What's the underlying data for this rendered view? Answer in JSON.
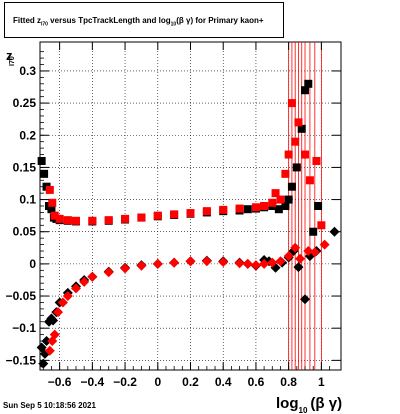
{
  "title": {
    "prefix": "Fitted  z",
    "prefix_sub": "I70",
    "middle": "  versus TpcTrackLength and log",
    "log_sub": "10",
    "suffix": "(β  γ) for Primary kaon+"
  },
  "footer": "Sun Sep  5 10:18:56 2021",
  "chart_data": {
    "type": "scatter",
    "xlabel": "log",
    "xlabel_sub": "10",
    "xlabel_suffix": "(β γ)",
    "ylabel": "z",
    "ylabel_sub": "I70",
    "xlim": [
      -0.72,
      1.12
    ],
    "ylim": [
      -0.165,
      0.345
    ],
    "xticks": [
      -0.6,
      -0.4,
      -0.2,
      0,
      0.2,
      0.4,
      0.6,
      0.8,
      1
    ],
    "xtick_labels": [
      "−0.6",
      "−0.4",
      "−0.2",
      "0",
      "0.2",
      "0.4",
      "0.6",
      "0.8",
      "1"
    ],
    "yticks": [
      -0.15,
      -0.1,
      -0.05,
      0,
      0.05,
      0.1,
      0.15,
      0.2,
      0.25,
      0.3
    ],
    "ytick_labels": [
      "−0.15",
      "−0.1",
      "−0.05",
      "0",
      "0.05",
      "0.1",
      "0.15",
      "0.2",
      "0.25",
      "0.3"
    ],
    "grid": true,
    "colors": {
      "series_black": "#000000",
      "series_red": "#ff0000"
    },
    "series": [
      {
        "color": "#000000",
        "marker": "square",
        "points": [
          {
            "x": -0.71,
            "y": 0.16
          },
          {
            "x": -0.695,
            "y": 0.14
          },
          {
            "x": -0.68,
            "y": 0.12
          },
          {
            "x": -0.665,
            "y": 0.09
          },
          {
            "x": -0.65,
            "y": 0.085
          },
          {
            "x": -0.635,
            "y": 0.072
          },
          {
            "x": -0.62,
            "y": 0.07
          },
          {
            "x": -0.6,
            "y": 0.068
          },
          {
            "x": -0.55,
            "y": 0.067
          },
          {
            "x": -0.5,
            "y": 0.066
          },
          {
            "x": -0.4,
            "y": 0.066
          },
          {
            "x": -0.3,
            "y": 0.067
          },
          {
            "x": -0.2,
            "y": 0.069
          },
          {
            "x": -0.1,
            "y": 0.072
          },
          {
            "x": 0.0,
            "y": 0.074
          },
          {
            "x": 0.1,
            "y": 0.076
          },
          {
            "x": 0.2,
            "y": 0.078
          },
          {
            "x": 0.3,
            "y": 0.08
          },
          {
            "x": 0.4,
            "y": 0.082
          },
          {
            "x": 0.5,
            "y": 0.083
          },
          {
            "x": 0.55,
            "y": 0.085
          },
          {
            "x": 0.6,
            "y": 0.086
          },
          {
            "x": 0.65,
            "y": 0.088
          },
          {
            "x": 0.7,
            "y": 0.09
          },
          {
            "x": 0.74,
            "y": 0.085
          },
          {
            "x": 0.78,
            "y": 0.09
          },
          {
            "x": 0.8,
            "y": 0.1
          },
          {
            "x": 0.82,
            "y": 0.12
          },
          {
            "x": 0.85,
            "y": 0.15
          },
          {
            "x": 0.88,
            "y": 0.21
          },
          {
            "x": 0.9,
            "y": 0.27
          },
          {
            "x": 0.92,
            "y": 0.28
          },
          {
            "x": 0.95,
            "y": 0.05
          },
          {
            "x": 0.98,
            "y": 0.09
          }
        ],
        "errors": []
      },
      {
        "color": "#ff0000",
        "marker": "square",
        "points": [
          {
            "x": -0.66,
            "y": 0.115
          },
          {
            "x": -0.645,
            "y": 0.095
          },
          {
            "x": -0.63,
            "y": 0.075
          },
          {
            "x": -0.6,
            "y": 0.07
          },
          {
            "x": -0.55,
            "y": 0.068
          },
          {
            "x": -0.5,
            "y": 0.067
          },
          {
            "x": -0.4,
            "y": 0.067
          },
          {
            "x": -0.3,
            "y": 0.068
          },
          {
            "x": -0.2,
            "y": 0.07
          },
          {
            "x": -0.1,
            "y": 0.072
          },
          {
            "x": 0.0,
            "y": 0.075
          },
          {
            "x": 0.1,
            "y": 0.077
          },
          {
            "x": 0.2,
            "y": 0.079
          },
          {
            "x": 0.3,
            "y": 0.082
          },
          {
            "x": 0.4,
            "y": 0.084
          },
          {
            "x": 0.5,
            "y": 0.086
          },
          {
            "x": 0.6,
            "y": 0.088
          },
          {
            "x": 0.65,
            "y": 0.09
          },
          {
            "x": 0.7,
            "y": 0.095
          },
          {
            "x": 0.72,
            "y": 0.11
          },
          {
            "x": 0.75,
            "y": 0.1
          },
          {
            "x": 0.78,
            "y": 0.14
          },
          {
            "x": 0.8,
            "y": 0.17
          },
          {
            "x": 0.82,
            "y": 0.25
          },
          {
            "x": 0.84,
            "y": 0.19
          },
          {
            "x": 0.86,
            "y": 0.22
          },
          {
            "x": 0.9,
            "y": 0.17
          },
          {
            "x": 0.93,
            "y": 0.13
          },
          {
            "x": 0.97,
            "y": 0.16
          },
          {
            "x": 1.0,
            "y": 0.06
          }
        ],
        "errors": [
          {
            "x": 0.8,
            "lo": -0.165,
            "hi": 0.345
          },
          {
            "x": 0.82,
            "lo": -0.165,
            "hi": 0.345
          },
          {
            "x": 0.84,
            "lo": -0.165,
            "hi": 0.345
          },
          {
            "x": 0.86,
            "lo": -0.165,
            "hi": 0.345
          },
          {
            "x": 0.88,
            "lo": -0.165,
            "hi": 0.345
          },
          {
            "x": 0.9,
            "lo": -0.165,
            "hi": 0.345
          },
          {
            "x": 0.93,
            "lo": -0.165,
            "hi": 0.345
          },
          {
            "x": 0.96,
            "lo": -0.165,
            "hi": 0.345
          },
          {
            "x": 1.0,
            "lo": -0.165,
            "hi": 0.345
          }
        ]
      },
      {
        "color": "#000000",
        "marker": "diamond",
        "points": [
          {
            "x": -0.71,
            "y": -0.13
          },
          {
            "x": -0.7,
            "y": -0.155
          },
          {
            "x": -0.69,
            "y": -0.14
          },
          {
            "x": -0.68,
            "y": -0.12
          },
          {
            "x": -0.665,
            "y": -0.09
          },
          {
            "x": -0.65,
            "y": -0.085
          },
          {
            "x": -0.64,
            "y": -0.088
          },
          {
            "x": -0.62,
            "y": -0.075
          },
          {
            "x": -0.6,
            "y": -0.06
          },
          {
            "x": -0.55,
            "y": -0.045
          },
          {
            "x": -0.5,
            "y": -0.035
          },
          {
            "x": -0.45,
            "y": -0.025
          },
          {
            "x": -0.4,
            "y": -0.02
          },
          {
            "x": -0.3,
            "y": -0.012
          },
          {
            "x": -0.2,
            "y": -0.006
          },
          {
            "x": -0.1,
            "y": -0.002
          },
          {
            "x": 0.0,
            "y": 0.0
          },
          {
            "x": 0.1,
            "y": 0.002
          },
          {
            "x": 0.2,
            "y": 0.004
          },
          {
            "x": 0.3,
            "y": 0.005
          },
          {
            "x": 0.4,
            "y": 0.004
          },
          {
            "x": 0.5,
            "y": 0.002
          },
          {
            "x": 0.55,
            "y": 0.0
          },
          {
            "x": 0.6,
            "y": -0.003
          },
          {
            "x": 0.65,
            "y": 0.006
          },
          {
            "x": 0.68,
            "y": 0.004
          },
          {
            "x": 0.72,
            "y": -0.006
          },
          {
            "x": 0.76,
            "y": 0.002
          },
          {
            "x": 0.8,
            "y": 0.01
          },
          {
            "x": 0.83,
            "y": 0.02
          },
          {
            "x": 0.86,
            "y": -0.005
          },
          {
            "x": 0.9,
            "y": -0.055
          },
          {
            "x": 0.93,
            "y": 0.012
          },
          {
            "x": 0.97,
            "y": 0.02
          },
          {
            "x": 1.08,
            "y": 0.05
          }
        ],
        "errors": []
      },
      {
        "color": "#ff0000",
        "marker": "diamond",
        "points": [
          {
            "x": -0.66,
            "y": -0.135
          },
          {
            "x": -0.645,
            "y": -0.12
          },
          {
            "x": -0.63,
            "y": -0.11
          },
          {
            "x": -0.61,
            "y": -0.075
          },
          {
            "x": -0.58,
            "y": -0.06
          },
          {
            "x": -0.55,
            "y": -0.05
          },
          {
            "x": -0.5,
            "y": -0.038
          },
          {
            "x": -0.45,
            "y": -0.028
          },
          {
            "x": -0.4,
            "y": -0.02
          },
          {
            "x": -0.3,
            "y": -0.013
          },
          {
            "x": -0.2,
            "y": -0.007
          },
          {
            "x": -0.1,
            "y": -0.003
          },
          {
            "x": 0.0,
            "y": 0.0
          },
          {
            "x": 0.1,
            "y": 0.002
          },
          {
            "x": 0.2,
            "y": 0.004
          },
          {
            "x": 0.3,
            "y": 0.004
          },
          {
            "x": 0.4,
            "y": 0.003
          },
          {
            "x": 0.5,
            "y": 0.001
          },
          {
            "x": 0.55,
            "y": 0.0
          },
          {
            "x": 0.6,
            "y": -0.002
          },
          {
            "x": 0.65,
            "y": 0.0
          },
          {
            "x": 0.7,
            "y": 0.002
          },
          {
            "x": 0.75,
            "y": 0.004
          },
          {
            "x": 0.8,
            "y": 0.012
          },
          {
            "x": 0.84,
            "y": 0.025
          },
          {
            "x": 0.87,
            "y": 0.008
          },
          {
            "x": 0.92,
            "y": 0.02
          },
          {
            "x": 0.96,
            "y": 0.018
          },
          {
            "x": 1.02,
            "y": 0.03
          }
        ],
        "errors": []
      }
    ]
  }
}
